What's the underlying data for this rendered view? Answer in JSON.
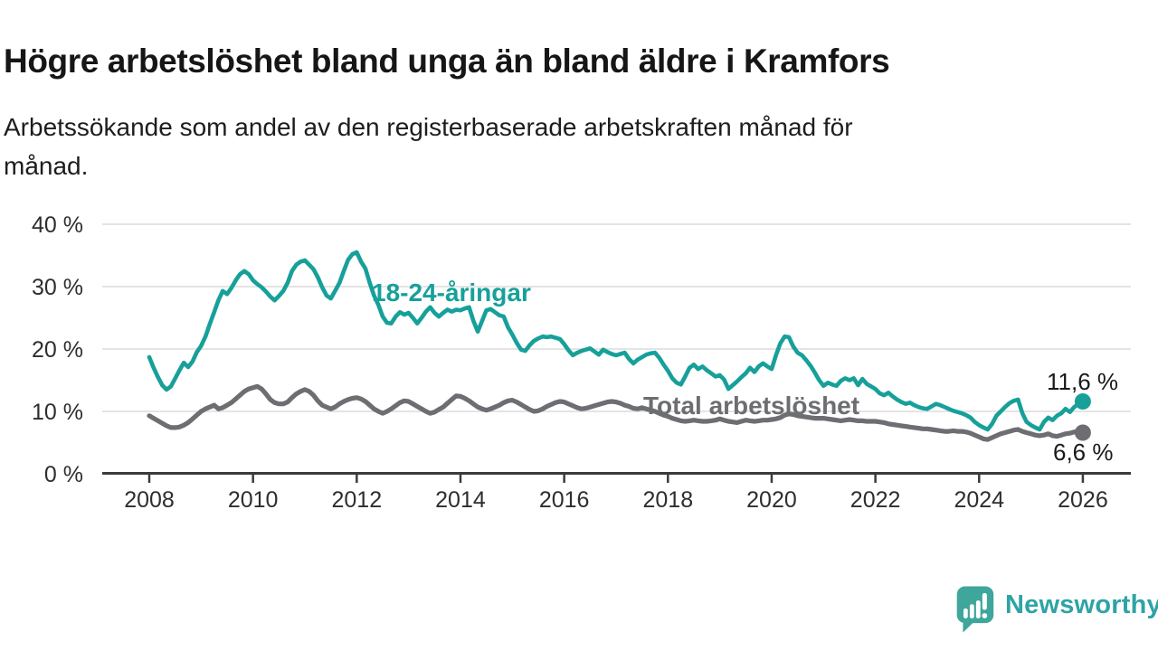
{
  "title": "Högre arbetslöshet bland unga än bland äldre i Kramfors",
  "subtitle_line1": "Arbetssökande som andel av den registerbaserade arbetskraften månad för",
  "subtitle_line2": "månad.",
  "colors": {
    "accent_teal": "#17A09A",
    "line_gray": "#6D6E72",
    "axis_text": "#2E2E2E",
    "gridline": "#DCDCDC",
    "axis_line": "#3B3B3B",
    "value_label_black": "#191919",
    "logo_teal": "#3EA69B",
    "logo_text_teal": "#2FA3A5"
  },
  "chart_data": {
    "type": "line",
    "x_unit": "month",
    "x_start": "2008-01",
    "x_end": "2026-01",
    "x_ticks": [
      2008,
      2010,
      2012,
      2014,
      2016,
      2018,
      2020,
      2022,
      2024,
      2026
    ],
    "y_tick_labels": [
      "0 %",
      "10 %",
      "20 %",
      "30 %",
      "40 %"
    ],
    "y_tick_values": [
      0,
      10,
      20,
      30,
      40
    ],
    "ylim": [
      0,
      40
    ],
    "grid": "horizontal",
    "legend_position": "inline-labels",
    "series": [
      {
        "name": "18-24-åringar",
        "color": "#17A09A",
        "end_label": "11,6 %",
        "end_value": 11.6,
        "end_dot": true,
        "values": [
          18.7,
          17.0,
          15.5,
          14.2,
          13.5,
          14.0,
          15.3,
          16.6,
          17.8,
          17.1,
          18.0,
          19.5,
          20.5,
          22.0,
          24.0,
          25.9,
          27.8,
          29.3,
          28.8,
          29.8,
          31.0,
          32.0,
          32.5,
          32.0,
          31.0,
          30.4,
          29.9,
          29.2,
          28.4,
          27.8,
          28.5,
          29.3,
          30.6,
          32.5,
          33.5,
          34.0,
          34.2,
          33.5,
          32.8,
          31.5,
          29.9,
          28.6,
          28.1,
          29.3,
          30.6,
          32.5,
          34.3,
          35.2,
          35.5,
          34.0,
          32.9,
          30.6,
          28.6,
          27.1,
          25.2,
          24.2,
          24.1,
          25.2,
          25.9,
          25.5,
          25.8,
          25.0,
          24.1,
          25.0,
          26.0,
          26.7,
          25.8,
          25.2,
          25.8,
          26.3,
          26.0,
          26.3,
          26.2,
          26.5,
          26.7,
          24.5,
          22.8,
          24.5,
          26.2,
          26.4,
          25.9,
          25.4,
          25.2,
          23.5,
          22.3,
          21.0,
          19.9,
          19.7,
          20.6,
          21.3,
          21.7,
          22.0,
          21.9,
          22.0,
          21.8,
          21.6,
          20.8,
          19.8,
          19.0,
          19.4,
          19.7,
          19.9,
          20.1,
          19.6,
          19.1,
          19.9,
          19.5,
          19.2,
          19.0,
          19.2,
          19.4,
          18.4,
          17.7,
          18.3,
          18.7,
          19.1,
          19.3,
          19.4,
          18.6,
          17.5,
          16.5,
          15.3,
          14.6,
          14.3,
          15.6,
          17.0,
          17.5,
          16.8,
          17.2,
          16.6,
          16.1,
          15.6,
          15.8,
          15.1,
          13.6,
          14.2,
          14.8,
          15.5,
          16.1,
          17.0,
          16.3,
          17.2,
          17.7,
          17.2,
          16.8,
          19.0,
          20.9,
          22.0,
          21.9,
          20.4,
          19.4,
          19.0,
          18.2,
          17.3,
          16.2,
          15.0,
          14.1,
          14.6,
          14.3,
          14.1,
          14.9,
          15.3,
          15.0,
          15.3,
          14.2,
          15.2,
          14.4,
          14.0,
          13.6,
          12.9,
          12.6,
          13.0,
          12.4,
          11.9,
          11.5,
          11.2,
          11.4,
          11.0,
          10.7,
          10.5,
          10.4,
          10.8,
          11.2,
          11.0,
          10.7,
          10.4,
          10.1,
          9.9,
          9.7,
          9.4,
          9.0,
          8.3,
          7.8,
          7.4,
          7.1,
          8.0,
          9.3,
          10.0,
          10.7,
          11.3,
          11.7,
          11.9,
          9.7,
          8.3,
          7.8,
          7.4,
          7.1,
          8.3,
          9.0,
          8.6,
          9.3,
          9.7,
          10.4,
          9.9,
          10.7,
          11.2,
          11.6
        ]
      },
      {
        "name": "Total arbetslöshet",
        "color": "#6D6E72",
        "end_label": "6,6 %",
        "end_value": 6.6,
        "end_dot": true,
        "values": [
          9.3,
          8.9,
          8.5,
          8.1,
          7.7,
          7.4,
          7.4,
          7.5,
          7.8,
          8.2,
          8.8,
          9.4,
          10.0,
          10.4,
          10.7,
          11.0,
          10.4,
          10.6,
          11.0,
          11.4,
          12.0,
          12.6,
          13.2,
          13.6,
          13.8,
          14.0,
          13.6,
          12.8,
          11.9,
          11.4,
          11.2,
          11.2,
          11.5,
          12.2,
          12.8,
          13.2,
          13.5,
          13.2,
          12.6,
          11.7,
          11.0,
          10.7,
          10.4,
          10.7,
          11.2,
          11.6,
          11.9,
          12.1,
          12.2,
          12.0,
          11.6,
          11.0,
          10.4,
          10.0,
          9.7,
          10.0,
          10.4,
          10.9,
          11.4,
          11.7,
          11.6,
          11.2,
          10.8,
          10.4,
          10.0,
          9.7,
          9.9,
          10.3,
          10.7,
          11.3,
          11.9,
          12.5,
          12.4,
          12.1,
          11.7,
          11.2,
          10.7,
          10.4,
          10.2,
          10.4,
          10.7,
          11.0,
          11.4,
          11.7,
          11.8,
          11.5,
          11.1,
          10.7,
          10.3,
          10.0,
          10.1,
          10.4,
          10.8,
          11.1,
          11.4,
          11.6,
          11.5,
          11.2,
          10.9,
          10.6,
          10.4,
          10.5,
          10.7,
          10.9,
          11.1,
          11.3,
          11.5,
          11.6,
          11.5,
          11.3,
          11.0,
          10.8,
          10.5,
          10.4,
          10.6,
          10.4,
          10.2,
          10.0,
          9.7,
          9.4,
          9.2,
          8.9,
          8.7,
          8.5,
          8.4,
          8.5,
          8.6,
          8.5,
          8.4,
          8.4,
          8.5,
          8.6,
          8.8,
          8.6,
          8.4,
          8.3,
          8.2,
          8.4,
          8.6,
          8.5,
          8.4,
          8.5,
          8.6,
          8.6,
          8.7,
          8.8,
          9.0,
          9.4,
          9.6,
          9.5,
          9.3,
          9.2,
          9.1,
          9.0,
          8.9,
          8.9,
          8.9,
          8.8,
          8.7,
          8.6,
          8.5,
          8.6,
          8.7,
          8.6,
          8.5,
          8.5,
          8.4,
          8.4,
          8.4,
          8.3,
          8.2,
          8.0,
          7.9,
          7.8,
          7.7,
          7.6,
          7.5,
          7.4,
          7.3,
          7.2,
          7.2,
          7.1,
          7.0,
          6.9,
          6.8,
          6.8,
          6.9,
          6.8,
          6.8,
          6.7,
          6.5,
          6.2,
          5.9,
          5.6,
          5.5,
          5.8,
          6.1,
          6.4,
          6.6,
          6.8,
          7.0,
          7.1,
          6.8,
          6.6,
          6.4,
          6.2,
          6.1,
          6.2,
          6.4,
          6.1,
          6.0,
          6.2,
          6.4,
          6.5,
          6.7,
          6.8,
          6.6
        ]
      }
    ]
  },
  "branding": {
    "logo_text": "Newsworthy"
  }
}
